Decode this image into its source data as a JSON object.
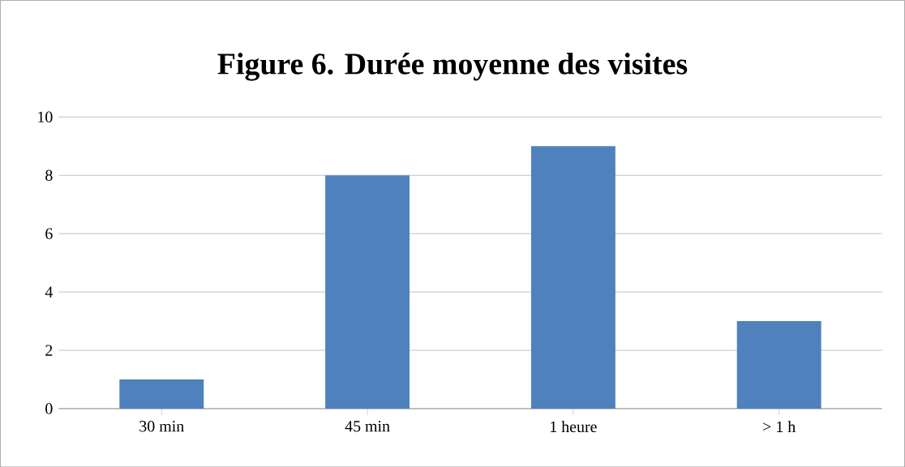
{
  "chart_data": {
    "type": "bar",
    "title": "Figure 6. Durée moyenne des visites",
    "categories": [
      "30 min",
      "45 min",
      "1 heure",
      "> 1 h"
    ],
    "values": [
      1,
      8,
      9,
      3
    ],
    "color": "#4f81bd",
    "ylim": [
      0,
      10
    ],
    "yticks": [
      0,
      2,
      4,
      6,
      8,
      10
    ],
    "grid": "y"
  }
}
